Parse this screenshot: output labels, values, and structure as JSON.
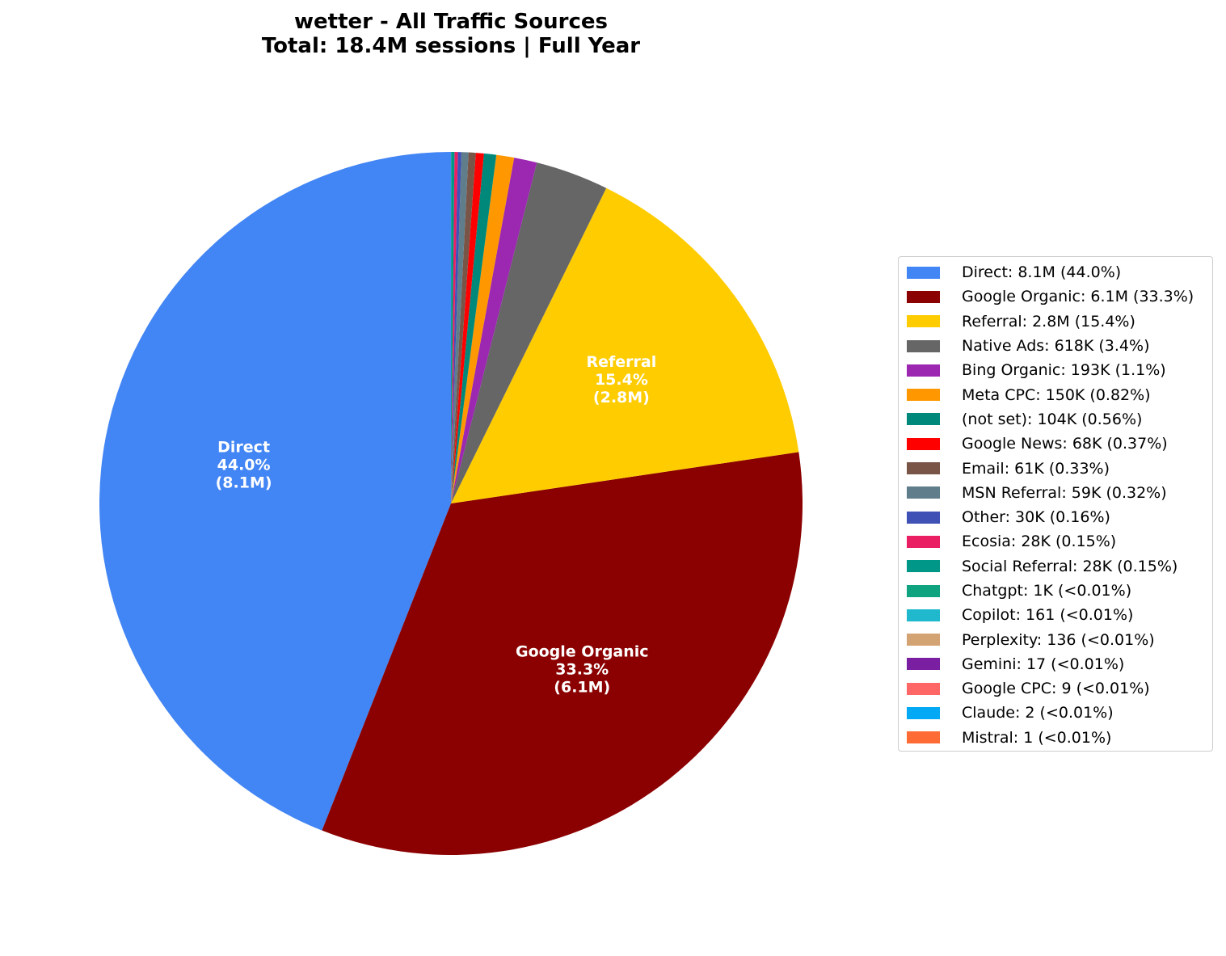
{
  "chart_data": {
    "type": "pie",
    "title": "wetter - All Traffic Sources",
    "subtitle": "Total: 18.4M sessions | Full Year",
    "start_angle_deg": 90,
    "direction": "counterclockwise",
    "legend_position": "right",
    "slices": [
      {
        "name": "Direct",
        "value": 8100000,
        "color": "#4285f4",
        "legend": "Direct: 8.1M (44.0%)",
        "label": [
          "Direct",
          "44.0%",
          "(8.1M)"
        ]
      },
      {
        "name": "Google Organic",
        "value": 6130000,
        "color": "#8b0000",
        "legend": "Google Organic: 6.1M (33.3%)",
        "label": [
          "Google Organic",
          "33.3%",
          "(6.1M)"
        ]
      },
      {
        "name": "Referral",
        "value": 2830000,
        "color": "#ffcc00",
        "legend": "Referral: 2.8M (15.4%)",
        "label": [
          "Referral",
          "15.4%",
          "(2.8M)"
        ]
      },
      {
        "name": "Native Ads",
        "value": 618000,
        "color": "#666666",
        "legend": "Native Ads: 618K (3.4%)"
      },
      {
        "name": "Bing Organic",
        "value": 193000,
        "color": "#9c27b0",
        "legend": "Bing Organic: 193K (1.1%)"
      },
      {
        "name": "Meta CPC",
        "value": 150000,
        "color": "#ff9800",
        "legend": "Meta CPC: 150K (0.82%)"
      },
      {
        "name": "(not set)",
        "value": 104000,
        "color": "#00897b",
        "legend": "(not set): 104K (0.56%)"
      },
      {
        "name": "Google News",
        "value": 68000,
        "color": "#ff0000",
        "legend": "Google News: 68K (0.37%)"
      },
      {
        "name": "Email",
        "value": 61000,
        "color": "#795548",
        "legend": "Email: 61K (0.33%)"
      },
      {
        "name": "MSN Referral",
        "value": 59000,
        "color": "#607d8b",
        "legend": "MSN Referral: 59K (0.32%)"
      },
      {
        "name": "Other",
        "value": 30000,
        "color": "#3f51b5",
        "legend": "Other: 30K (0.16%)"
      },
      {
        "name": "Ecosia",
        "value": 28000,
        "color": "#e91e63",
        "legend": "Ecosia: 28K (0.15%)"
      },
      {
        "name": "Social Referral",
        "value": 28000,
        "color": "#009688",
        "legend": "Social Referral: 28K (0.15%)"
      },
      {
        "name": "Chatgpt",
        "value": 1000,
        "color": "#10a37f",
        "legend": "Chatgpt: 1K (<0.01%)"
      },
      {
        "name": "Copilot",
        "value": 161,
        "color": "#20b8cd",
        "legend": "Copilot: 161 (<0.01%)"
      },
      {
        "name": "Perplexity",
        "value": 136,
        "color": "#d4a373",
        "legend": "Perplexity: 136 (<0.01%)"
      },
      {
        "name": "Gemini",
        "value": 17,
        "color": "#7b1fa2",
        "legend": "Gemini: 17 (<0.01%)"
      },
      {
        "name": "Google CPC",
        "value": 9,
        "color": "#ff6666",
        "legend": "Google CPC: 9 (<0.01%)"
      },
      {
        "name": "Claude",
        "value": 2,
        "color": "#03a9f4",
        "legend": "Claude: 2 (<0.01%)"
      },
      {
        "name": "Mistral",
        "value": 1,
        "color": "#ff6b35",
        "legend": "Mistral: 1 (<0.01%)"
      }
    ]
  }
}
